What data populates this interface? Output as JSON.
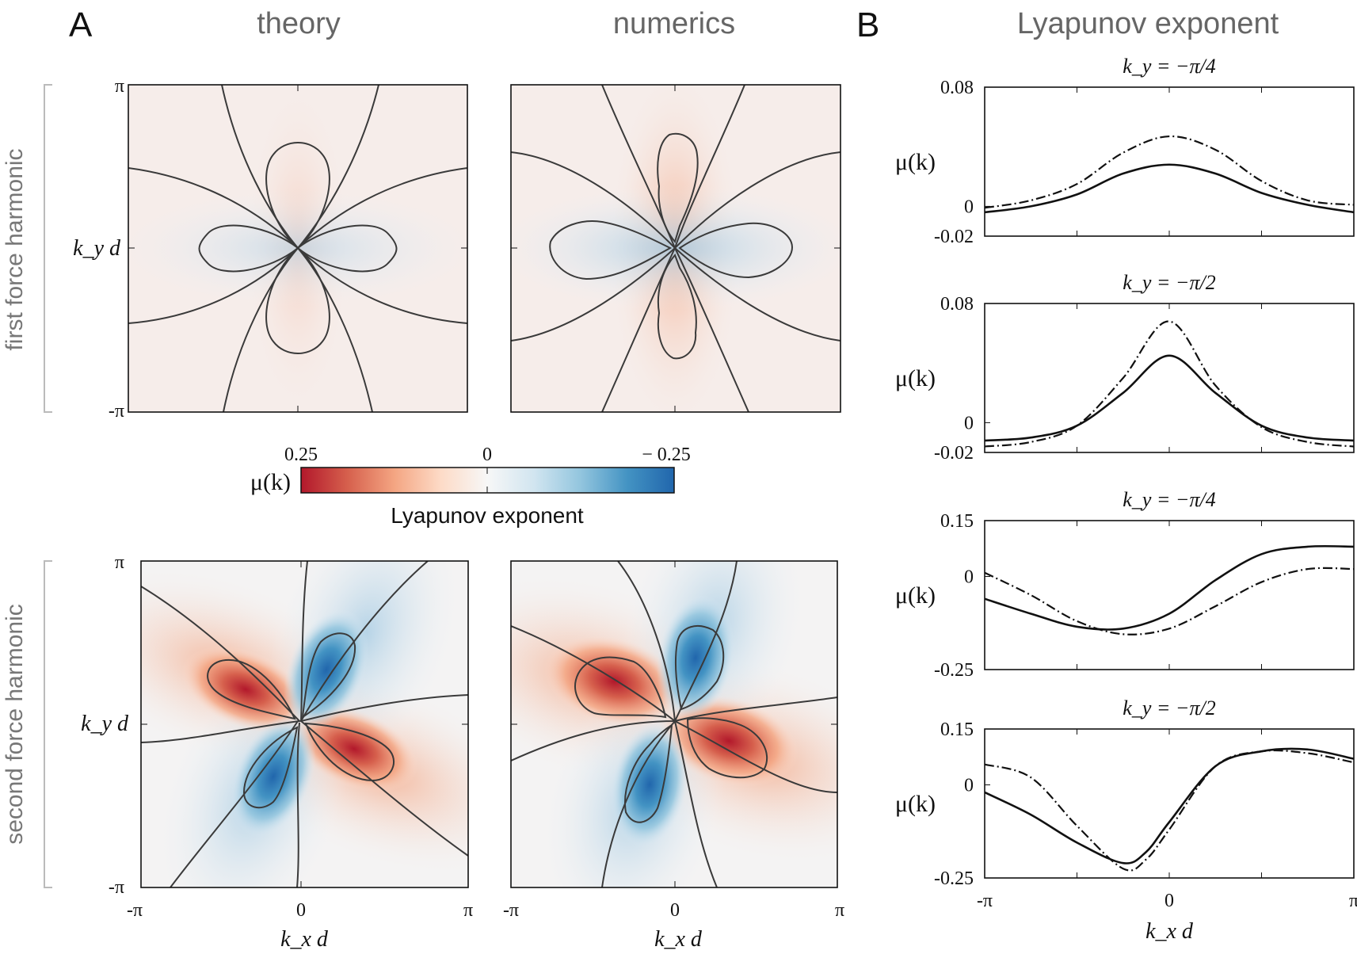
{
  "panel_labels": {
    "A": "A",
    "B": "B"
  },
  "column_titles": {
    "theory": "theory",
    "numerics": "numerics",
    "lyapunov": "Lyapunov exponent"
  },
  "row_labels": {
    "first": "first force harmonic",
    "second": "second force harmonic"
  },
  "map_axes": {
    "y_ticks": [
      "π",
      "-π"
    ],
    "y_label": "k_y d",
    "x_ticks": [
      "-π",
      "0",
      "π"
    ],
    "x_label": "k_x d"
  },
  "colorbar": {
    "symbol": "μ(k)",
    "ticks": [
      "0.25",
      "0",
      "− 0.25"
    ],
    "label": "Lyapunov exponent",
    "colors": [
      "#b2182b",
      "#d6604d",
      "#f4a582",
      "#fddbc7",
      "#f7f7f7",
      "#d1e5f0",
      "#92c5de",
      "#4393c3",
      "#2166ac"
    ]
  },
  "chart_data": [
    {
      "type": "heatmap",
      "panel": "A",
      "row": "first force harmonic",
      "column": "theory",
      "x_range": [
        -3.1416,
        3.1416
      ],
      "y_range": [
        -3.1416,
        3.1416
      ],
      "value_range": [
        -0.25,
        0.25
      ],
      "pattern": "4-lobe: positive lobes along k_y axis, negative lobes along k_x axis, max |μ| ≈ 0.03"
    },
    {
      "type": "heatmap",
      "panel": "A",
      "row": "first force harmonic",
      "column": "numerics",
      "x_range": [
        -3.1416,
        3.1416
      ],
      "y_range": [
        -3.1416,
        3.1416
      ],
      "value_range": [
        -0.25,
        0.25
      ],
      "pattern": "4-lobe: positive lobes along k_y axis, negative lobes along k_x axis, max |μ| ≈ 0.05"
    },
    {
      "type": "heatmap",
      "panel": "A",
      "row": "second force harmonic",
      "column": "theory",
      "x_range": [
        -3.1416,
        3.1416
      ],
      "y_range": [
        -3.1416,
        3.1416
      ],
      "value_range": [
        -0.25,
        0.25
      ],
      "pattern": "rotated 4-lobe: positive lobes toward upper-left and lower-right, negative lobes toward upper-right and lower-left, max |μ| ≈ 0.25"
    },
    {
      "type": "heatmap",
      "panel": "A",
      "row": "second force harmonic",
      "column": "numerics",
      "x_range": [
        -3.1416,
        3.1416
      ],
      "y_range": [
        -3.1416,
        3.1416
      ],
      "value_range": [
        -0.25,
        0.25
      ],
      "pattern": "rotated 4-lobe: positive lobes toward upper-left and lower-right, negative lobes toward upper-right and lower-left, max |μ| ≈ 0.25"
    },
    {
      "type": "line",
      "panel": "B",
      "title": "k_y = −π/4",
      "xlabel": "",
      "ylabel": "μ(k)",
      "xlim": [
        -3.1416,
        3.1416
      ],
      "ylim": [
        -0.02,
        0.08
      ],
      "yticks": [
        "0.08",
        "0",
        "-0.02"
      ],
      "xticks": [],
      "x": [
        -3.1416,
        -2.3562,
        -1.5708,
        -0.7854,
        0,
        0.7854,
        1.5708,
        2.3562,
        3.1416
      ],
      "series": [
        {
          "style": "solid",
          "values": [
            -0.004,
            0.0,
            0.008,
            0.022,
            0.028,
            0.022,
            0.009,
            0.001,
            -0.004
          ]
        },
        {
          "style": "dash-dot",
          "values": [
            -0.001,
            0.004,
            0.015,
            0.036,
            0.047,
            0.038,
            0.017,
            0.004,
            0.001
          ]
        }
      ]
    },
    {
      "type": "line",
      "panel": "B",
      "title": "k_y = −π/2",
      "xlabel": "",
      "ylabel": "μ(k)",
      "xlim": [
        -3.1416,
        3.1416
      ],
      "ylim": [
        -0.02,
        0.08
      ],
      "yticks": [
        "0.08",
        "0",
        "-0.02"
      ],
      "xticks": [],
      "x": [
        -3.1416,
        -2.3562,
        -1.5708,
        -0.7854,
        0,
        0.7854,
        1.5708,
        2.3562,
        3.1416
      ],
      "series": [
        {
          "style": "solid",
          "values": [
            -0.012,
            -0.01,
            -0.002,
            0.02,
            0.045,
            0.02,
            -0.002,
            -0.01,
            -0.012
          ]
        },
        {
          "style": "dash-dot",
          "values": [
            -0.016,
            -0.013,
            -0.002,
            0.03,
            0.068,
            0.025,
            -0.003,
            -0.013,
            -0.016
          ]
        }
      ]
    },
    {
      "type": "line",
      "panel": "B",
      "title": "k_y = −π/4",
      "xlabel": "",
      "ylabel": "μ(k)",
      "xlim": [
        -3.1416,
        3.1416
      ],
      "ylim": [
        -0.25,
        0.15
      ],
      "yticks": [
        "0.15",
        "0",
        "-0.25"
      ],
      "xticks": [],
      "x": [
        -3.1416,
        -2.3562,
        -1.5708,
        -0.7854,
        0,
        0.7854,
        1.5708,
        2.3562,
        3.1416
      ],
      "series": [
        {
          "style": "solid",
          "values": [
            -0.06,
            -0.1,
            -0.135,
            -0.14,
            -0.1,
            -0.01,
            0.06,
            0.08,
            0.08
          ]
        },
        {
          "style": "dash-dot",
          "values": [
            0.01,
            -0.05,
            -0.12,
            -0.155,
            -0.14,
            -0.08,
            -0.015,
            0.02,
            0.02
          ]
        }
      ]
    },
    {
      "type": "line",
      "panel": "B",
      "title": "k_y = −π/2",
      "xlabel": "k_x d",
      "ylabel": "μ(k)",
      "xlim": [
        -3.1416,
        3.1416
      ],
      "ylim": [
        -0.25,
        0.15
      ],
      "yticks": [
        "0.15",
        "0",
        "-0.25"
      ],
      "xticks": [
        "-π",
        "0",
        "π"
      ],
      "x": [
        -3.1416,
        -2.3562,
        -1.5708,
        -0.7854,
        -0.3927,
        0,
        0.7854,
        1.5708,
        2.3562,
        3.1416
      ],
      "series": [
        {
          "style": "solid",
          "values": [
            -0.02,
            -0.08,
            -0.155,
            -0.21,
            -0.18,
            -0.1,
            0.05,
            0.09,
            0.095,
            0.07
          ]
        },
        {
          "style": "dash-dot",
          "values": [
            0.055,
            0.02,
            -0.11,
            -0.225,
            -0.2,
            -0.12,
            0.05,
            0.09,
            0.085,
            0.06
          ]
        }
      ]
    }
  ]
}
